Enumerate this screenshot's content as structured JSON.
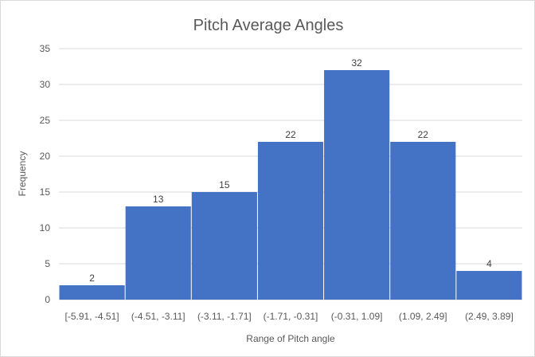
{
  "chart_data": {
    "type": "bar",
    "title": "Pitch Average Angles",
    "xlabel": "Range of Pitch angle",
    "ylabel": "Frequency",
    "categories": [
      "[-5.91, -4.51]",
      "(-4.51, -3.11]",
      "(-3.11, -1.71]",
      "(-1.71, -0.31]",
      "(-0.31, 1.09]",
      "(1.09, 2.49]",
      "(2.49, 3.89]"
    ],
    "values": [
      2,
      13,
      15,
      22,
      32,
      22,
      4
    ],
    "data_labels": [
      "2",
      "13",
      "15",
      "22",
      "32",
      "22",
      "4"
    ],
    "ylim": [
      0,
      35
    ],
    "yticks": [
      0,
      5,
      10,
      15,
      20,
      25,
      30,
      35
    ],
    "ytick_labels": [
      "0",
      "5",
      "10",
      "15",
      "20",
      "25",
      "30",
      "35"
    ],
    "grid": "horizontal",
    "legend": "none",
    "colors": {
      "bar": "#4472c4",
      "grid": "#d9d9d9"
    }
  }
}
